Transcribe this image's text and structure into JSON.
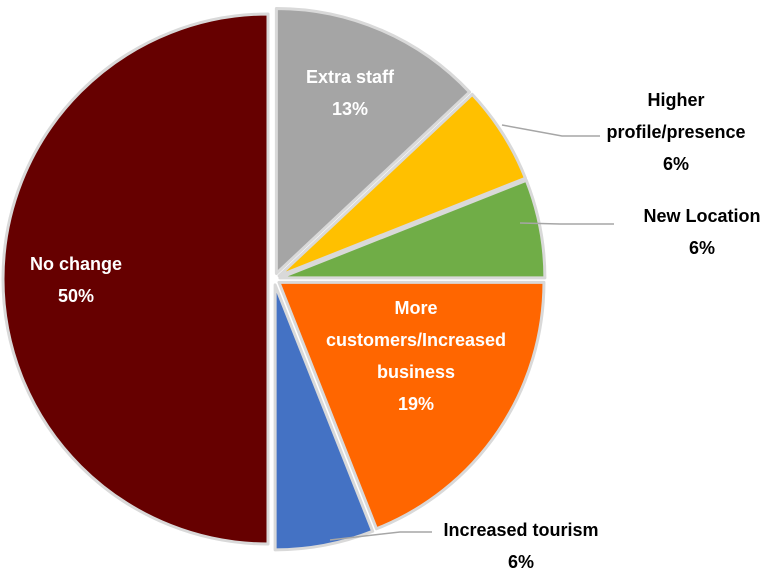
{
  "chart_data": {
    "type": "pie",
    "title": "",
    "start_angle_deg": 0,
    "direction": "clockwise",
    "slices": [
      {
        "name": "Extra staff",
        "label_lines": [
          "Extra staff",
          "13%"
        ],
        "value": 13,
        "value_label": "13%",
        "color": "#A5A5A5",
        "label_color": "#ffffff",
        "label_position": "inside"
      },
      {
        "name": "Higher profile/presence",
        "label_lines": [
          "Higher",
          "profile/presence",
          "6%"
        ],
        "value": 6,
        "value_label": "6%",
        "color": "#FFC000",
        "label_color": "#000000",
        "label_position": "outside"
      },
      {
        "name": "New Location",
        "label_lines": [
          "New Location",
          "6%"
        ],
        "value": 6,
        "value_label": "6%",
        "color": "#70AD47",
        "label_color": "#000000",
        "label_position": "outside"
      },
      {
        "name": "More customers/Increased business",
        "label_lines": [
          "More",
          "customers/Increased",
          "business",
          "19%"
        ],
        "value": 19,
        "value_label": "19%",
        "color": "#FF6600",
        "label_color": "#ffffff",
        "label_position": "inside"
      },
      {
        "name": "Increased tourism",
        "label_lines": [
          "Increased tourism",
          "6%"
        ],
        "value": 6,
        "value_label": "6%",
        "color": "#4472C4",
        "label_color": "#000000",
        "label_position": "outside"
      },
      {
        "name": "No change",
        "label_lines": [
          "No change",
          "50%"
        ],
        "value": 50,
        "value_label": "50%",
        "color": "#660000",
        "label_color": "#ffffff",
        "label_position": "inside"
      }
    ],
    "border_color": "#D9D9D9",
    "leader_line_color": "#A6A6A6",
    "legend": "none"
  }
}
